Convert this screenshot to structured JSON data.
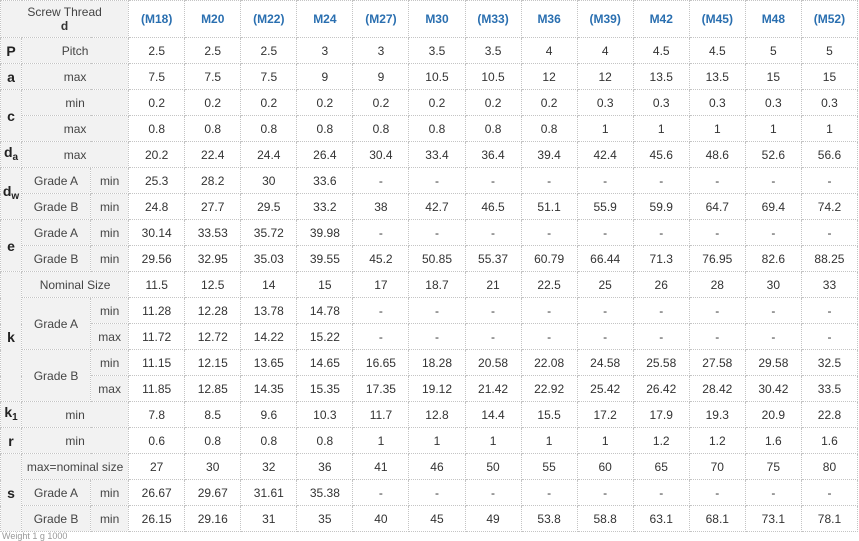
{
  "header": {
    "title": "Screw Thread",
    "subtitle": "d",
    "sizes": [
      "(M18)",
      "M20",
      "(M22)",
      "M24",
      "(M27)",
      "M30",
      "(M33)",
      "M36",
      "(M39)",
      "M42",
      "(M45)",
      "M48",
      "(M52)"
    ]
  },
  "rows": [
    {
      "sym": "P",
      "sub": "",
      "span": 1,
      "grade": "",
      "gspan": 1,
      "label": "Pitch",
      "values": [
        "2.5",
        "2.5",
        "2.5",
        "3",
        "3",
        "3.5",
        "3.5",
        "4",
        "4",
        "4.5",
        "4.5",
        "5",
        "5"
      ]
    },
    {
      "sym": "a",
      "sub": "",
      "span": 1,
      "grade": "",
      "gspan": 1,
      "label": "max",
      "values": [
        "7.5",
        "7.5",
        "7.5",
        "9",
        "9",
        "10.5",
        "10.5",
        "12",
        "12",
        "13.5",
        "13.5",
        "15",
        "15"
      ]
    },
    {
      "sym": "c",
      "sub": "",
      "span": 2,
      "grade": "",
      "gspan": 1,
      "label": "min",
      "values": [
        "0.2",
        "0.2",
        "0.2",
        "0.2",
        "0.2",
        "0.2",
        "0.2",
        "0.2",
        "0.3",
        "0.3",
        "0.3",
        "0.3",
        "0.3"
      ]
    },
    {
      "label": "max",
      "values": [
        "0.8",
        "0.8",
        "0.8",
        "0.8",
        "0.8",
        "0.8",
        "0.8",
        "0.8",
        "1",
        "1",
        "1",
        "1",
        "1"
      ]
    },
    {
      "sym": "d",
      "sub": "a",
      "span": 1,
      "grade": "",
      "gspan": 1,
      "label": "max",
      "values": [
        "20.2",
        "22.4",
        "24.4",
        "26.4",
        "30.4",
        "33.4",
        "36.4",
        "39.4",
        "42.4",
        "45.6",
        "48.6",
        "52.6",
        "56.6"
      ]
    },
    {
      "sym": "d",
      "sub": "w",
      "span": 2,
      "grade": "Grade A",
      "gspan": 1,
      "label": "min",
      "values": [
        "25.3",
        "28.2",
        "30",
        "33.6",
        "-",
        "-",
        "-",
        "-",
        "-",
        "-",
        "-",
        "-",
        "-"
      ]
    },
    {
      "grade": "Grade B",
      "gspan": 1,
      "label": "min",
      "values": [
        "24.8",
        "27.7",
        "29.5",
        "33.2",
        "38",
        "42.7",
        "46.5",
        "51.1",
        "55.9",
        "59.9",
        "64.7",
        "69.4",
        "74.2"
      ]
    },
    {
      "sym": "e",
      "sub": "",
      "span": 2,
      "grade": "Grade A",
      "gspan": 1,
      "label": "min",
      "values": [
        "30.14",
        "33.53",
        "35.72",
        "39.98",
        "-",
        "-",
        "-",
        "-",
        "-",
        "-",
        "-",
        "-",
        "-"
      ]
    },
    {
      "grade": "Grade B",
      "gspan": 1,
      "label": "min",
      "values": [
        "29.56",
        "32.95",
        "35.03",
        "39.55",
        "45.2",
        "50.85",
        "55.37",
        "60.79",
        "66.44",
        "71.3",
        "76.95",
        "82.6",
        "88.25"
      ]
    },
    {
      "sym": "k",
      "sub": "",
      "span": 5,
      "grade": "",
      "gspan": 1,
      "label": "Nominal Size",
      "values": [
        "11.5",
        "12.5",
        "14",
        "15",
        "17",
        "18.7",
        "21",
        "22.5",
        "25",
        "26",
        "28",
        "30",
        "33"
      ]
    },
    {
      "grade": "Grade A",
      "gspan": 2,
      "label": "min",
      "values": [
        "11.28",
        "12.28",
        "13.78",
        "14.78",
        "-",
        "-",
        "-",
        "-",
        "-",
        "-",
        "-",
        "-",
        "-"
      ]
    },
    {
      "label": "max",
      "values": [
        "11.72",
        "12.72",
        "14.22",
        "15.22",
        "-",
        "-",
        "-",
        "-",
        "-",
        "-",
        "-",
        "-",
        "-"
      ]
    },
    {
      "grade": "Grade B",
      "gspan": 2,
      "label": "min",
      "values": [
        "11.15",
        "12.15",
        "13.65",
        "14.65",
        "16.65",
        "18.28",
        "20.58",
        "22.08",
        "24.58",
        "25.58",
        "27.58",
        "29.58",
        "32.5"
      ]
    },
    {
      "label": "max",
      "values": [
        "11.85",
        "12.85",
        "14.35",
        "15.35",
        "17.35",
        "19.12",
        "21.42",
        "22.92",
        "25.42",
        "26.42",
        "28.42",
        "30.42",
        "33.5"
      ]
    },
    {
      "sym": "k",
      "sub": "1",
      "span": 1,
      "grade": "",
      "gspan": 1,
      "label": "min",
      "values": [
        "7.8",
        "8.5",
        "9.6",
        "10.3",
        "11.7",
        "12.8",
        "14.4",
        "15.5",
        "17.2",
        "17.9",
        "19.3",
        "20.9",
        "22.8"
      ]
    },
    {
      "sym": "r",
      "sub": "",
      "span": 1,
      "grade": "",
      "gspan": 1,
      "label": "min",
      "values": [
        "0.6",
        "0.8",
        "0.8",
        "0.8",
        "1",
        "1",
        "1",
        "1",
        "1",
        "1.2",
        "1.2",
        "1.6",
        "1.6"
      ]
    },
    {
      "sym": "s",
      "sub": "",
      "span": 3,
      "grade": "",
      "gspan": 1,
      "label": "max=nominal size",
      "values": [
        "27",
        "30",
        "32",
        "36",
        "41",
        "46",
        "50",
        "55",
        "60",
        "65",
        "70",
        "75",
        "80"
      ]
    },
    {
      "grade": "Grade A",
      "gspan": 1,
      "label": "min",
      "values": [
        "26.67",
        "29.67",
        "31.61",
        "35.38",
        "-",
        "-",
        "-",
        "-",
        "-",
        "-",
        "-",
        "-",
        "-"
      ]
    },
    {
      "grade": "Grade B",
      "gspan": 1,
      "label": "min",
      "values": [
        "26.15",
        "29.16",
        "31",
        "35",
        "40",
        "45",
        "49",
        "53.8",
        "58.8",
        "63.1",
        "68.1",
        "73.1",
        "78.1"
      ]
    }
  ],
  "footer": {
    "text": "Weight 1 g 1000"
  }
}
